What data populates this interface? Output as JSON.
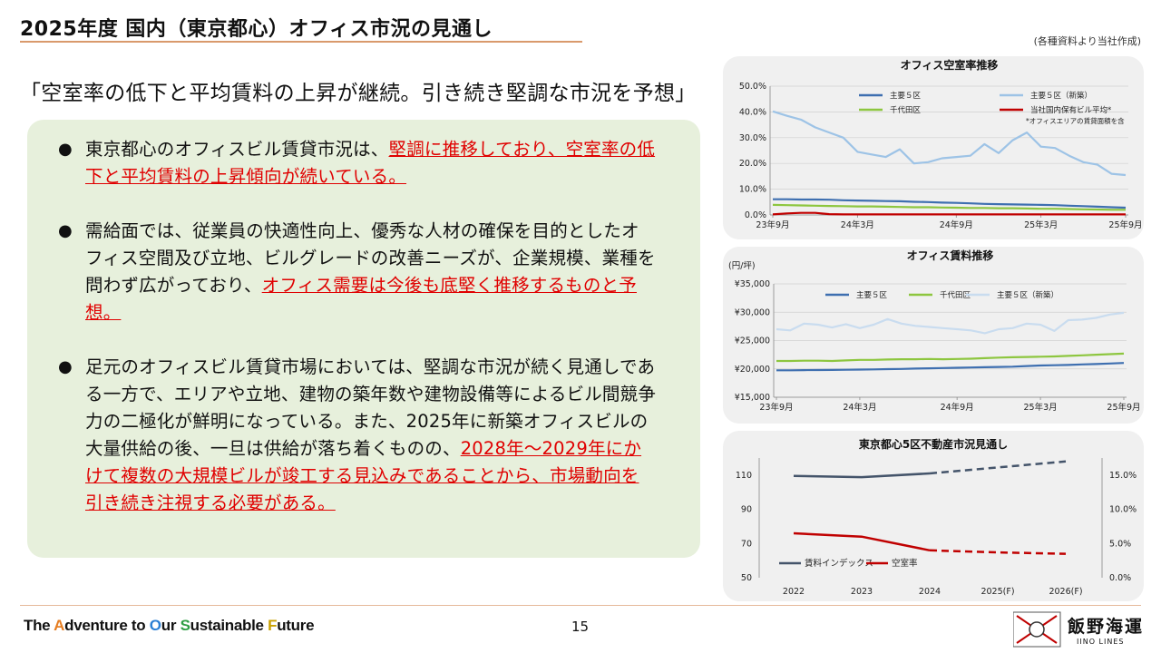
{
  "header": {
    "title": "2025年度 国内（東京都心）オフィス市況の見通し",
    "source": "(各種資料より当社作成)"
  },
  "headline": "「空室率の低下と平均賃料の上昇が継続。引き続き堅調な市況を予想」",
  "bullets": [
    {
      "pre": "東京都心のオフィスビル賃貸市況は、",
      "red": "堅調に推移しており、空室率の低下と平均賃料の上昇傾向が続いている。",
      "post": ""
    },
    {
      "pre": "需給面では、従業員の快適性向上、優秀な人材の確保を目的としたオフィス空間及び立地、ビルグレードの改善ニーズが、企業規模、業種を問わず広がっており、",
      "red": "オフィス需要は今後も底堅く推移するものと予想。",
      "post": ""
    },
    {
      "pre": "足元のオフィスビル賃貸市場においては、堅調な市況が続く見通しである一方で、エリアや立地、建物の築年数や建物設備等によるビル間競争力の二極化が鮮明になっている。また、2025年に新築オフィスビルの大量供給の後、一旦は供給が落ち着くものの、",
      "red": "2028年～2029年にかけて複数の大規模ビルが竣工する見込みであることから、市場動向を引き続き注視する必要がある。",
      "post": ""
    }
  ],
  "footer": {
    "tagline_parts": [
      "The ",
      "A",
      "dventure to ",
      "O",
      "ur ",
      "S",
      "ustainable ",
      "F",
      "uture"
    ],
    "page_number": "15",
    "company_name": "飯野海運",
    "company_en": "IINO LINES"
  },
  "colors": {
    "accent": "#e00000",
    "panel": "#e7f0dc",
    "main5": "#3e6fb0",
    "new5": "#9dc3e6",
    "chiyoda": "#8dc63f",
    "own": "#c00000",
    "index": "#44546a"
  },
  "chart_data": [
    {
      "type": "line",
      "title": "オフィス空室率推移",
      "x_ticks": [
        "23年9月",
        "24年3月",
        "24年9月",
        "25年3月",
        "25年9月"
      ],
      "ylim": [
        0,
        50
      ],
      "y_ticks": [
        "0.0%",
        "10.0%",
        "20.0%",
        "30.0%",
        "40.0%",
        "50.0%"
      ],
      "footnote": "*オフィスエリアの賃貸面積を含",
      "series": [
        {
          "name": "主要５区",
          "color": "#3e6fb0",
          "values": [
            6.1,
            6.1,
            6.0,
            6.0,
            5.9,
            5.7,
            5.6,
            5.5,
            5.4,
            5.3,
            5.1,
            5.0,
            4.8,
            4.7,
            4.5,
            4.3,
            4.2,
            4.1,
            4.0,
            3.9,
            3.8,
            3.6,
            3.4,
            3.2,
            3.0,
            2.8
          ]
        },
        {
          "name": "主要５区（新築）",
          "color": "#9dc3e6",
          "values": [
            40.2,
            38.5,
            37.0,
            34.0,
            32.0,
            30.0,
            24.5,
            23.5,
            22.5,
            25.5,
            20.0,
            20.5,
            22.0,
            22.5,
            23.0,
            27.5,
            24.0,
            29.0,
            32.0,
            26.5,
            26.0,
            23.0,
            20.5,
            19.5,
            16.0,
            15.5
          ]
        },
        {
          "name": "千代田区",
          "color": "#8dc63f",
          "values": [
            3.9,
            3.8,
            3.7,
            3.6,
            3.5,
            3.4,
            3.3,
            3.3,
            3.2,
            3.1,
            3.0,
            3.0,
            2.9,
            2.8,
            2.7,
            2.7,
            2.6,
            2.6,
            2.5,
            2.4,
            2.4,
            2.3,
            2.2,
            2.1,
            2.0,
            2.0
          ]
        },
        {
          "name": "当社国内保有ビル平均*",
          "color": "#c00000",
          "values": [
            0.2,
            0.6,
            0.8,
            0.8,
            0.3,
            0.2,
            0.2,
            0.2,
            0.2,
            0.2,
            0.2,
            0.2,
            0.2,
            0.2,
            0.2,
            0.2,
            0.2,
            0.2,
            0.2,
            0.2,
            0.2,
            0.2,
            0.2,
            0.2,
            0.2,
            0.2
          ]
        }
      ]
    },
    {
      "type": "line",
      "title": "オフィス賃料推移",
      "ylabel": "(円/坪)",
      "x_ticks": [
        "23年9月",
        "24年3月",
        "24年9月",
        "25年3月",
        "25年9月"
      ],
      "ylim": [
        15000,
        35000
      ],
      "y_ticks": [
        "¥15,000",
        "¥20,000",
        "¥25,000",
        "¥30,000",
        "¥35,000"
      ],
      "series": [
        {
          "name": "主要５区",
          "color": "#3e6fb0",
          "values": [
            19750,
            19760,
            19780,
            19800,
            19820,
            19850,
            19880,
            19920,
            19960,
            20000,
            20050,
            20100,
            20150,
            20200,
            20250,
            20300,
            20350,
            20400,
            20500,
            20600,
            20650,
            20700,
            20800,
            20850,
            20950,
            21050
          ]
        },
        {
          "name": "千代田区",
          "color": "#8dc63f",
          "values": [
            21400,
            21400,
            21450,
            21450,
            21400,
            21500,
            21600,
            21600,
            21650,
            21700,
            21700,
            21750,
            21700,
            21750,
            21800,
            21900,
            22000,
            22050,
            22100,
            22150,
            22200,
            22300,
            22400,
            22500,
            22600,
            22700
          ]
        },
        {
          "name": "主要５区（新築）",
          "color": "#c9dcef",
          "values": [
            27000,
            26800,
            28000,
            27800,
            27300,
            27900,
            27200,
            27800,
            28800,
            28000,
            27600,
            27400,
            27200,
            27000,
            26800,
            26300,
            27000,
            27200,
            28000,
            27800,
            26700,
            28600,
            28700,
            29000,
            29600,
            29900
          ]
        }
      ]
    },
    {
      "type": "line",
      "title": "東京都心5区不動産市況見通し",
      "categories": [
        "2022",
        "2023",
        "2024",
        "2025(F)",
        "2026(F)"
      ],
      "y_left": {
        "ylim": [
          50,
          120
        ],
        "ticks": [
          "50",
          "70",
          "90",
          "110"
        ]
      },
      "y_right": {
        "ylim": [
          0,
          17.5
        ],
        "ticks": [
          "0.0%",
          "5.0%",
          "10.0%",
          "15.0%"
        ]
      },
      "series": [
        {
          "name": "賃料インデックス",
          "axis": "left",
          "color": "#44546a",
          "values": [
            109.5,
            108.8,
            111.0,
            114.5,
            118.0
          ],
          "forecast_from_index": 2
        },
        {
          "name": "空室率",
          "axis": "right",
          "color": "#c00000",
          "values": [
            6.5,
            6.0,
            4.0,
            3.7,
            3.5
          ],
          "forecast_from_index": 2
        }
      ]
    }
  ]
}
